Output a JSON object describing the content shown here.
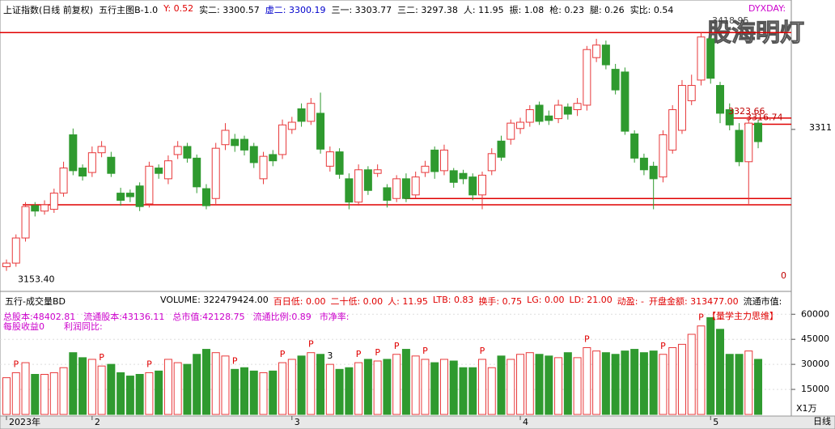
{
  "header": {
    "items": [
      "上证指数(日线 前复权)",
      "五行主图B-1.0",
      "Y: 0.52",
      "实二: 3300.57",
      "虚二: 3300.19",
      "三一: 3303.77",
      "三二: 3297.38",
      "人: 11.95",
      "振: 1.08",
      "枪: 0.23",
      "腿: 0.26",
      "实比: 0.54"
    ],
    "watermark": "股海明灯",
    "indicator": "DYXDAY:",
    "zero_label": "0",
    "period": "日线"
  },
  "volume_header": {
    "items": [
      "VOLUME: 322479424.00",
      "百日低: 0.00",
      "二十低: 0.00",
      "人: 11.95",
      "LTB: 0.83",
      "换手: 0.75",
      "LG: 0.00",
      "LD: 21.00",
      "动盈: -",
      "开盘金额: 313477.00",
      "流通市值:"
    ],
    "info": [
      "总股本:48402.81",
      "流通股本:43136.11",
      "总市值:42128.75",
      "流通比例:0.89",
      "市净率:"
    ],
    "info2": [
      "每股收益0",
      "利润同比:"
    ],
    "tag": "【量学主力思维】"
  },
  "chart_data": [
    {
      "type": "candlestick",
      "title": "五行主图B-1.0",
      "categories": [
        "2023年",
        null,
        null,
        null,
        null,
        null,
        null,
        null,
        null,
        "2",
        null,
        null,
        null,
        null,
        null,
        null,
        null,
        null,
        null,
        null,
        null,
        null,
        null,
        null,
        null,
        null,
        null,
        null,
        null,
        null,
        "3",
        null,
        null,
        null,
        null,
        null,
        null,
        null,
        null,
        null,
        null,
        null,
        null,
        null,
        null,
        null,
        null,
        null,
        null,
        null,
        null,
        null,
        null,
        null,
        "4",
        null,
        null,
        null,
        null,
        null,
        null,
        null,
        null,
        null,
        null,
        null,
        null,
        null,
        null,
        null,
        null,
        null,
        null,
        null,
        "5",
        null,
        null,
        null,
        null,
        null
      ],
      "open": [
        3158,
        3162,
        3190,
        3226,
        3220,
        3222,
        3240,
        3305,
        3268,
        3263,
        3285,
        3280,
        3240,
        3240,
        3248,
        3228,
        3268,
        3256,
        3283,
        3292,
        3279,
        3245,
        3234,
        3294,
        3300,
        3300,
        3292,
        3256,
        3283,
        3283,
        3311,
        3334,
        3320,
        3329,
        3270,
        3286,
        3256,
        3230,
        3266,
        3262,
        3246,
        3234,
        3256,
        3238,
        3263,
        3288,
        3265,
        3265,
        3262,
        3258,
        3238,
        3265,
        3298,
        3300,
        3312,
        3319,
        3338,
        3326,
        3323,
        3336,
        3333,
        3338,
        3391,
        3405,
        3378,
        3375,
        3306,
        3279,
        3270,
        3258,
        3288,
        3310,
        3343,
        3366,
        3412,
        3360,
        3333,
        3310,
        3275,
        3318
      ],
      "high": [
        3166,
        3194,
        3230,
        3230,
        3232,
        3245,
        3275,
        3312,
        3272,
        3292,
        3298,
        3286,
        3246,
        3244,
        3252,
        3275,
        3272,
        3282,
        3298,
        3296,
        3283,
        3250,
        3296,
        3318,
        3306,
        3304,
        3296,
        3286,
        3288,
        3322,
        3325,
        3340,
        3346,
        3352,
        3292,
        3290,
        3262,
        3272,
        3270,
        3272,
        3250,
        3260,
        3262,
        3264,
        3276,
        3292,
        3294,
        3268,
        3266,
        3262,
        3264,
        3290,
        3304,
        3322,
        3324,
        3338,
        3342,
        3332,
        3344,
        3340,
        3346,
        3404,
        3412,
        3410,
        3384,
        3380,
        3310,
        3284,
        3275,
        3310,
        3338,
        3366,
        3372,
        3418.95,
        3416,
        3364,
        3340,
        3318,
        3324,
        3322
      ],
      "low": [
        3153.4,
        3158,
        3186,
        3214,
        3216,
        3218,
        3236,
        3260,
        3254,
        3258,
        3280,
        3258,
        3226,
        3230,
        3220,
        3224,
        3256,
        3250,
        3278,
        3274,
        3240,
        3222,
        3228,
        3288,
        3286,
        3282,
        3268,
        3250,
        3270,
        3278,
        3306,
        3314,
        3316,
        3284,
        3264,
        3256,
        3222,
        3226,
        3238,
        3258,
        3224,
        3230,
        3230,
        3234,
        3258,
        3256,
        3260,
        3246,
        3250,
        3232,
        3222,
        3260,
        3276,
        3294,
        3306,
        3314,
        3316,
        3316,
        3318,
        3322,
        3326,
        3332,
        3386,
        3378,
        3350,
        3305,
        3274,
        3260,
        3222,
        3252,
        3284,
        3306,
        3338,
        3360,
        3362,
        3318,
        3310,
        3270,
        3228,
        3290
      ],
      "close": [
        3162,
        3190,
        3225,
        3220,
        3227,
        3240,
        3268,
        3265,
        3259,
        3285,
        3292,
        3262,
        3232,
        3236,
        3225,
        3270,
        3262,
        3276,
        3292,
        3279,
        3247,
        3226,
        3290,
        3310,
        3293,
        3288,
        3274,
        3281,
        3276,
        3316,
        3319,
        3320,
        3340,
        3289,
        3286,
        3261,
        3230,
        3266,
        3243,
        3266,
        3232,
        3256,
        3234,
        3258,
        3270,
        3264,
        3288,
        3252,
        3256,
        3238,
        3260,
        3284,
        3280,
        3318,
        3319,
        3333,
        3320,
        3321,
        3338,
        3328,
        3340,
        3400,
        3405,
        3383,
        3355,
        3309,
        3279,
        3266,
        3256,
        3305,
        3333,
        3360,
        3360,
        3414,
        3368,
        3329,
        3316,
        3275,
        3318,
        3297.38
      ],
      "ylim": [
        3135,
        3448
      ],
      "yticks": [
        3311
      ],
      "up_color": "#e8383a",
      "down_color": "#2f9a2f",
      "levels": [
        3418.95,
        3227,
        3234,
        3323.66,
        3316.74
      ],
      "level_color": "#e00000",
      "annotations": [
        "3418.95",
        "3323.66",
        "3316.74",
        "3153.40"
      ]
    },
    {
      "type": "bar",
      "title": "五行-成交量BD",
      "values": [
        22000,
        25000,
        31000,
        24000,
        24000,
        25000,
        28000,
        37000,
        34000,
        33000,
        29000,
        30000,
        25000,
        23000,
        24000,
        25000,
        26000,
        33000,
        31000,
        30000,
        36000,
        39000,
        37000,
        35000,
        27000,
        28000,
        26000,
        25000,
        26000,
        31000,
        33000,
        35000,
        37000,
        36000,
        30000,
        27000,
        28000,
        31000,
        33000,
        32000,
        33000,
        36000,
        39000,
        35000,
        33000,
        31000,
        33000,
        32000,
        28000,
        28000,
        33000,
        28000,
        35000,
        33000,
        36000,
        37000,
        36000,
        35000,
        34000,
        37000,
        34000,
        40000,
        38000,
        37000,
        36000,
        38000,
        39000,
        37000,
        38000,
        36000,
        40000,
        42000,
        48000,
        53000,
        58000,
        51000,
        36000,
        36000,
        38000,
        33000
      ],
      "bar_marks": [
        null,
        "P",
        null,
        null,
        null,
        null,
        null,
        null,
        null,
        null,
        "P",
        null,
        null,
        null,
        null,
        "P",
        null,
        null,
        null,
        null,
        null,
        null,
        null,
        null,
        "P",
        null,
        null,
        null,
        null,
        "P",
        null,
        null,
        "P",
        null,
        "3",
        null,
        null,
        "P",
        null,
        "P",
        null,
        "P",
        null,
        null,
        "P",
        null,
        null,
        null,
        null,
        null,
        "P",
        null,
        null,
        null,
        null,
        null,
        null,
        null,
        null,
        null,
        null,
        "P",
        null,
        null,
        null,
        null,
        null,
        null,
        null,
        "P",
        null,
        null,
        null,
        "P",
        null,
        null,
        null,
        null,
        null,
        null
      ],
      "ylim": [
        0,
        64000
      ],
      "yticks": [
        15000,
        30000,
        45000,
        60000
      ],
      "unit_label": "X1万"
    }
  ]
}
